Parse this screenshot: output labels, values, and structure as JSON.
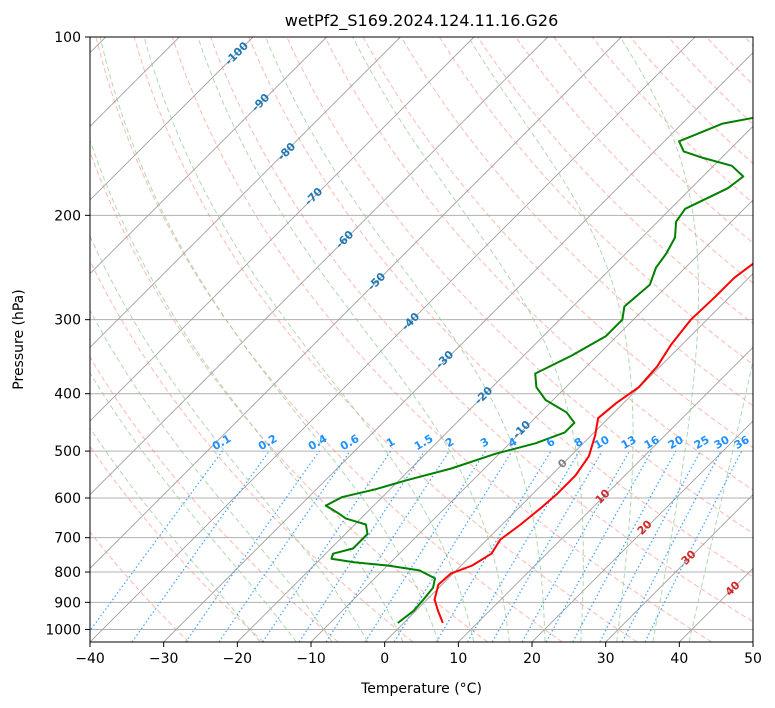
{
  "chart_data": {
    "type": "line",
    "subtype": "skew-t log-p diagram",
    "title": "wetPf2_S169.2024.124.11.16.G26",
    "xlabel": "Temperature (°C)",
    "ylabel": "Pressure (hPa)",
    "xlim": [
      -40,
      50
    ],
    "ylim": [
      1050,
      100
    ],
    "y_scale": "log",
    "grid": true,
    "x_ticks": [
      -40,
      -30,
      -20,
      -10,
      0,
      10,
      20,
      30,
      40,
      50
    ],
    "y_ticks": [
      100,
      200,
      300,
      400,
      500,
      600,
      700,
      800,
      900,
      1000
    ],
    "series": [
      {
        "color": "#ff0000",
        "points": [
          [
            5.3,
            975
          ],
          [
            3.0,
            930
          ],
          [
            1.0,
            890
          ],
          [
            -0.5,
            840
          ],
          [
            -0.3,
            805
          ],
          [
            1.5,
            780
          ],
          [
            2.5,
            745
          ],
          [
            1.8,
            705
          ],
          [
            2.5,
            665
          ],
          [
            3.0,
            625
          ],
          [
            3.3,
            590
          ],
          [
            3.3,
            550
          ],
          [
            2.5,
            510
          ],
          [
            0.5,
            470
          ],
          [
            -1.4,
            440
          ],
          [
            -1.0,
            415
          ],
          [
            -0.1,
            390
          ],
          [
            -0.4,
            360
          ],
          [
            -1.5,
            330
          ],
          [
            -2.2,
            300
          ],
          [
            -2.0,
            275
          ],
          [
            -2.0,
            255
          ],
          [
            -0.8,
            230
          ],
          [
            2.3,
            210
          ],
          [
            6.2,
            195
          ],
          [
            11.5,
            175
          ],
          [
            15.5,
            162
          ],
          [
            18.0,
            152
          ],
          [
            19.5,
            140
          ],
          [
            20.5,
            128
          ],
          [
            22.0,
            120
          ],
          [
            25.0,
            113
          ],
          [
            27.0,
            107
          ],
          [
            28.4,
            100
          ]
        ]
      },
      {
        "color": "#008000",
        "points": [
          [
            -0.8,
            975
          ],
          [
            -0.3,
            930
          ],
          [
            -0.5,
            890
          ],
          [
            -0.8,
            850
          ],
          [
            -1.8,
            820
          ],
          [
            -5.0,
            795
          ],
          [
            -10.0,
            780
          ],
          [
            -15.0,
            770
          ],
          [
            -18.5,
            760
          ],
          [
            -19.0,
            745
          ],
          [
            -17.0,
            730
          ],
          [
            -17.0,
            690
          ],
          [
            -18.5,
            665
          ],
          [
            -22.0,
            650
          ],
          [
            -24.0,
            635
          ],
          [
            -26.5,
            618
          ],
          [
            -25.5,
            598
          ],
          [
            -22.0,
            580
          ],
          [
            -19.0,
            560
          ],
          [
            -14.5,
            535
          ],
          [
            -10.5,
            505
          ],
          [
            -6.5,
            485
          ],
          [
            -4.0,
            465
          ],
          [
            -4.0,
            448
          ],
          [
            -6.5,
            430
          ],
          [
            -11.0,
            410
          ],
          [
            -14.0,
            390
          ],
          [
            -16.0,
            370
          ],
          [
            -13.5,
            345
          ],
          [
            -11.5,
            320
          ],
          [
            -11.5,
            300
          ],
          [
            -13.0,
            285
          ],
          [
            -12.5,
            262
          ],
          [
            -14.0,
            245
          ],
          [
            -14.5,
            232
          ],
          [
            -15.5,
            218
          ],
          [
            -17.5,
            205
          ],
          [
            -18.0,
            195
          ],
          [
            -15.0,
            180
          ],
          [
            -14.5,
            172
          ],
          [
            -17.5,
            165
          ],
          [
            -22.5,
            160
          ],
          [
            -26.0,
            156
          ],
          [
            -28.0,
            150
          ],
          [
            -24.5,
            140
          ],
          [
            -19.0,
            135
          ],
          [
            -10.0,
            132
          ],
          [
            -5.0,
            128
          ],
          [
            -3.5,
            123
          ],
          [
            -3.0,
            117
          ],
          [
            -2.5,
            110
          ],
          [
            -1.5,
            105
          ],
          [
            -0.5,
            100
          ]
        ]
      }
    ],
    "dry_adiabat_labels": [
      "-100",
      "-90",
      "-80",
      "-70",
      "-60",
      "-50",
      "-40",
      "-30",
      "-20",
      "-10"
    ],
    "mixing_ratio_labels": [
      "0.1",
      "0.2",
      "0.4",
      "0.6",
      "1",
      "1.5",
      "2",
      "3",
      "4",
      "6",
      "8",
      "10",
      "13",
      "16",
      "20",
      "25",
      "30",
      "36"
    ],
    "mixing_ratio_values": [
      0.1,
      0.2,
      0.4,
      0.6,
      1,
      1.5,
      2,
      3,
      4,
      6,
      8,
      10,
      13,
      16,
      20,
      25,
      30,
      36
    ],
    "moist_adiabat_labels": [
      "0",
      "10",
      "20",
      "30",
      "40"
    ],
    "colors": {
      "temperature": "#ff0000",
      "dewpoint": "#008000",
      "dry_adiabat": "#fa8072",
      "moist_adiabat": "#90c890",
      "mixing_ratio": "#1e90ff",
      "isotherm": "#7f7f7f",
      "isotherm_label": "#1f77b4",
      "moist_label": "#d62728"
    }
  }
}
